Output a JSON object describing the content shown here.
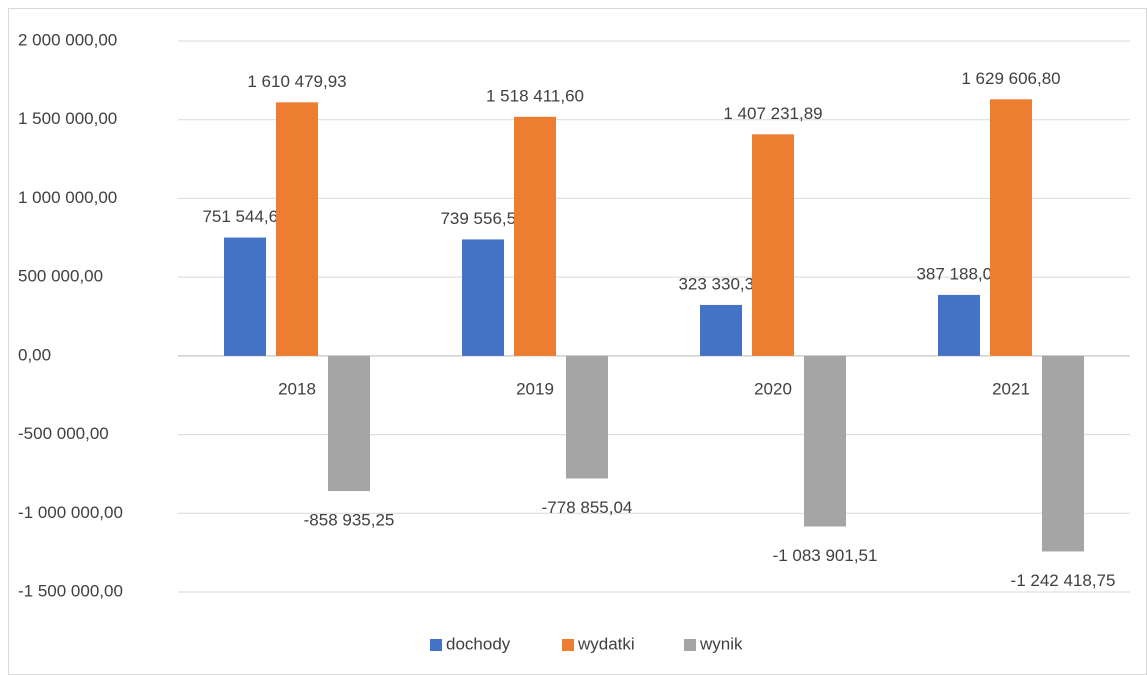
{
  "chart_data": {
    "type": "bar",
    "categories": [
      "2018",
      "2019",
      "2020",
      "2021"
    ],
    "series": [
      {
        "name": "dochody",
        "color": "#4472c4",
        "values": [
          751544.68,
          739556.56,
          323330.38,
          387188.05
        ],
        "value_labels": [
          "751 544,68",
          "739 556,56",
          "323 330,38",
          "387 188,05"
        ]
      },
      {
        "name": "wydatki",
        "color": "#ed7d31",
        "values": [
          1610479.93,
          1518411.6,
          1407231.89,
          1629606.8
        ],
        "value_labels": [
          "1 610 479,93",
          "1 518 411,60",
          "1 407 231,89",
          "1 629 606,80"
        ]
      },
      {
        "name": "wynik",
        "color": "#a5a5a5",
        "values": [
          -858935.25,
          -778855.04,
          -1083901.51,
          -1242418.75
        ],
        "value_labels": [
          "-858 935,25",
          "-778 855,04",
          "-1 083 901,51",
          "-1 242 418,75"
        ]
      }
    ],
    "ylim": [
      -1500000,
      2000000
    ],
    "yticks": [
      {
        "value": -1500000,
        "label": "-1 500 000,00"
      },
      {
        "value": -1000000,
        "label": "-1 000 000,00"
      },
      {
        "value": -500000,
        "label": "-500 000,00"
      },
      {
        "value": 0,
        "label": "0,00"
      },
      {
        "value": 500000,
        "label": "500 000,00"
      },
      {
        "value": 1000000,
        "label": "1 000 000,00"
      },
      {
        "value": 1500000,
        "label": "1 500 000,00"
      },
      {
        "value": 2000000,
        "label": "2 000 000,00"
      }
    ],
    "grid": true,
    "legend": "bottom"
  }
}
